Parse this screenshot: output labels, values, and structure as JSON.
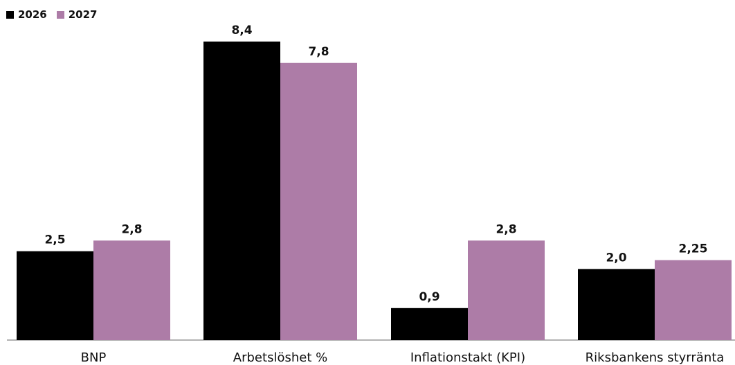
{
  "chart_data": {
    "type": "bar",
    "categories": [
      "BNP",
      "Arbetslöshet %",
      "Inflationstakt (KPI)",
      "Riksbankens styrränta"
    ],
    "series": [
      {
        "name": "2026",
        "color": "#000000",
        "values": [
          2.5,
          8.4,
          0.9,
          2.0
        ],
        "labels": [
          "2,5",
          "8,4",
          "0,9",
          "2,0"
        ]
      },
      {
        "name": "2027",
        "color": "#ad7ca7",
        "values": [
          2.8,
          7.8,
          2.8,
          2.25
        ],
        "labels": [
          "2,8",
          "7,8",
          "2,8",
          "2,25"
        ]
      }
    ],
    "ylim": [
      0,
      8.4
    ],
    "grid": false,
    "legend_position": "top-left"
  }
}
